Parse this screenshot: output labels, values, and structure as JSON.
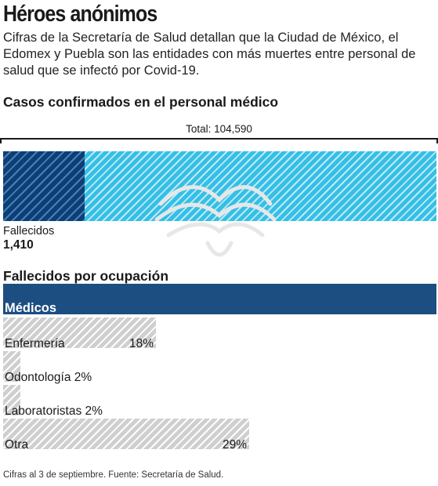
{
  "title": "Héroes anónimos",
  "subtitle": "Cifras de la Secretaría de Salud detallan que la Ciudad de México, el Edomex y Puebla son las entidades con más muertes entre personal de salud que se infectó por Covid-19.",
  "section1_title": "Casos confirmados en el personal médico",
  "section2_title": "Fallecidos por ocupación",
  "source": "Cifras al 3 de septiembre. Fuente: Secretaría de Salud.",
  "colors": {
    "light_blue": "#35bfe6",
    "dark_blue": "#1c4e82",
    "gray": "#cfcfcf"
  },
  "chart_data": [
    {
      "type": "bar",
      "total_label": "Total: 104,590",
      "total": 104590,
      "fallecidos_label": "Fallecidos",
      "fallecidos_value": "1,410",
      "fallecidos": 1410
    },
    {
      "type": "bar",
      "categories": [
        {
          "label": "Médicos",
          "pct_label": "",
          "value": 51
        },
        {
          "label": "Enfermería",
          "pct_label": "18%",
          "value": 18
        },
        {
          "label": "Odontología",
          "pct_label": "2%",
          "value": 2
        },
        {
          "label": "Laboratoristas",
          "pct_label": "2%",
          "value": 2
        },
        {
          "label": "Otra",
          "pct_label": "29%",
          "value": 29
        }
      ]
    }
  ]
}
